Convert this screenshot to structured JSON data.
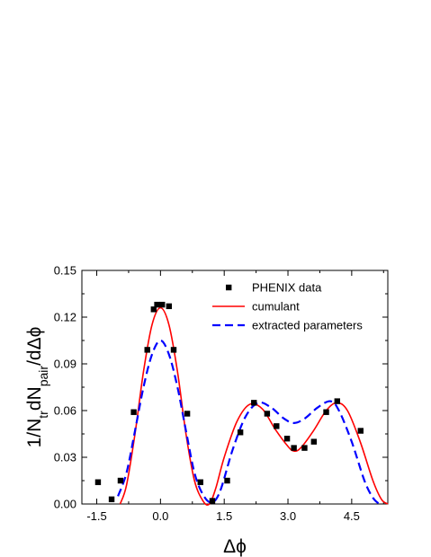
{
  "chart_data": {
    "type": "scatter",
    "xlabel": "Δϕ",
    "ylabel": "1/N_tr dN_pair/dΔϕ",
    "ylabel_parts": {
      "a": "1/N",
      "sub1": "tr",
      "b": "dN",
      "sub2": "pair",
      "c": "/dΔϕ"
    },
    "xlim": [
      -1.85,
      5.35
    ],
    "ylim": [
      0.0,
      0.15
    ],
    "xticks": [
      -1.5,
      0.0,
      1.5,
      3.0,
      4.5
    ],
    "xtick_labels": [
      "-1.5",
      "0.0",
      "1.5",
      "3.0",
      "4.5"
    ],
    "yticks": [
      0.0,
      0.03,
      0.06,
      0.09,
      0.12,
      0.15
    ],
    "ytick_labels": [
      "0.00",
      "0.03",
      "0.06",
      "0.09",
      "0.12",
      "0.15"
    ],
    "legend_position": "top-right",
    "grid": false,
    "series": [
      {
        "name": "PHENIX data",
        "style": "markers",
        "color": "#000000",
        "points": [
          [
            -1.47,
            0.014
          ],
          [
            -1.15,
            0.003
          ],
          [
            -0.94,
            0.015
          ],
          [
            -0.63,
            0.059
          ],
          [
            -0.31,
            0.099
          ],
          [
            -0.16,
            0.125
          ],
          [
            -0.08,
            0.128
          ],
          [
            0.04,
            0.128
          ],
          [
            0.2,
            0.127
          ],
          [
            0.31,
            0.099
          ],
          [
            0.63,
            0.058
          ],
          [
            0.94,
            0.014
          ],
          [
            1.22,
            0.002
          ],
          [
            1.57,
            0.015
          ],
          [
            1.88,
            0.046
          ],
          [
            2.2,
            0.065
          ],
          [
            2.51,
            0.058
          ],
          [
            2.73,
            0.05
          ],
          [
            2.98,
            0.042
          ],
          [
            3.14,
            0.036
          ],
          [
            3.39,
            0.036
          ],
          [
            3.61,
            0.04
          ],
          [
            3.9,
            0.059
          ],
          [
            4.16,
            0.066
          ],
          [
            4.71,
            0.047
          ]
        ]
      },
      {
        "name": "cumulant",
        "style": "solid",
        "color": "#ff0000",
        "points": [
          [
            -0.95,
            0.0
          ],
          [
            -0.8,
            0.012
          ],
          [
            -0.6,
            0.045
          ],
          [
            -0.4,
            0.085
          ],
          [
            -0.2,
            0.115
          ],
          [
            0.0,
            0.126
          ],
          [
            0.2,
            0.115
          ],
          [
            0.4,
            0.085
          ],
          [
            0.6,
            0.045
          ],
          [
            0.8,
            0.015
          ],
          [
            1.0,
            0.002
          ],
          [
            1.15,
            0.0
          ],
          [
            1.3,
            0.01
          ],
          [
            1.5,
            0.03
          ],
          [
            1.8,
            0.053
          ],
          [
            2.1,
            0.064
          ],
          [
            2.4,
            0.061
          ],
          [
            2.7,
            0.048
          ],
          [
            3.0,
            0.037
          ],
          [
            3.14,
            0.034
          ],
          [
            3.3,
            0.036
          ],
          [
            3.6,
            0.047
          ],
          [
            3.9,
            0.06
          ],
          [
            4.15,
            0.065
          ],
          [
            4.4,
            0.06
          ],
          [
            4.7,
            0.04
          ],
          [
            5.0,
            0.015
          ],
          [
            5.2,
            0.003
          ],
          [
            5.35,
            0.0
          ]
        ]
      },
      {
        "name": "extracted parameters",
        "style": "dashed",
        "color": "#0000ff",
        "points": [
          [
            -1.0,
            0.005
          ],
          [
            -0.8,
            0.02
          ],
          [
            -0.6,
            0.047
          ],
          [
            -0.4,
            0.075
          ],
          [
            -0.2,
            0.096
          ],
          [
            0.0,
            0.105
          ],
          [
            0.2,
            0.096
          ],
          [
            0.4,
            0.075
          ],
          [
            0.6,
            0.047
          ],
          [
            0.8,
            0.02
          ],
          [
            1.0,
            0.006
          ],
          [
            1.2,
            0.001
          ],
          [
            1.4,
            0.008
          ],
          [
            1.7,
            0.035
          ],
          [
            2.0,
            0.056
          ],
          [
            2.3,
            0.065
          ],
          [
            2.6,
            0.062
          ],
          [
            2.9,
            0.055
          ],
          [
            3.14,
            0.052
          ],
          [
            3.4,
            0.055
          ],
          [
            3.7,
            0.062
          ],
          [
            4.0,
            0.066
          ],
          [
            4.2,
            0.06
          ],
          [
            4.5,
            0.04
          ],
          [
            4.8,
            0.015
          ],
          [
            5.0,
            0.004
          ],
          [
            5.15,
            0.0
          ]
        ]
      }
    ]
  }
}
